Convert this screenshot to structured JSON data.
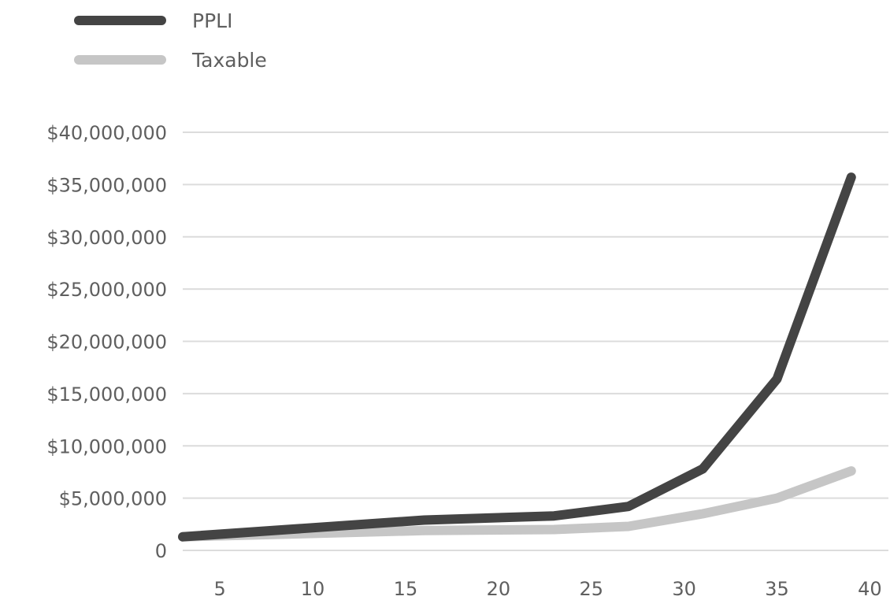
{
  "chart_data": {
    "type": "line",
    "title": "",
    "xlabel": "",
    "ylabel": "",
    "x_ticks": [
      "5",
      "10",
      "15",
      "20",
      "25",
      "30",
      "35",
      "40"
    ],
    "y_ticks": [
      "0",
      "$5,000,000",
      "$10,000,000",
      "$15,000,000",
      "$20,000,000",
      "$25,000,000",
      "$30,000,000",
      "$35,000,000",
      "$40,000,000"
    ],
    "xlim": [
      3,
      41
    ],
    "ylim": [
      0,
      40000000
    ],
    "grid": true,
    "legend_position": "top-left",
    "series": [
      {
        "name": "PPLI",
        "color": "#444444",
        "x": [
          3,
          16,
          23,
          27,
          31,
          35,
          39
        ],
        "y": [
          1300000,
          2900000,
          3300000,
          4200000,
          7800000,
          16400000,
          35700000
        ]
      },
      {
        "name": "Taxable",
        "color": "#c6c6c6",
        "x": [
          3,
          16,
          23,
          27,
          31,
          35,
          39
        ],
        "y": [
          1300000,
          1900000,
          2000000,
          2300000,
          3500000,
          5000000,
          7600000
        ]
      }
    ]
  }
}
